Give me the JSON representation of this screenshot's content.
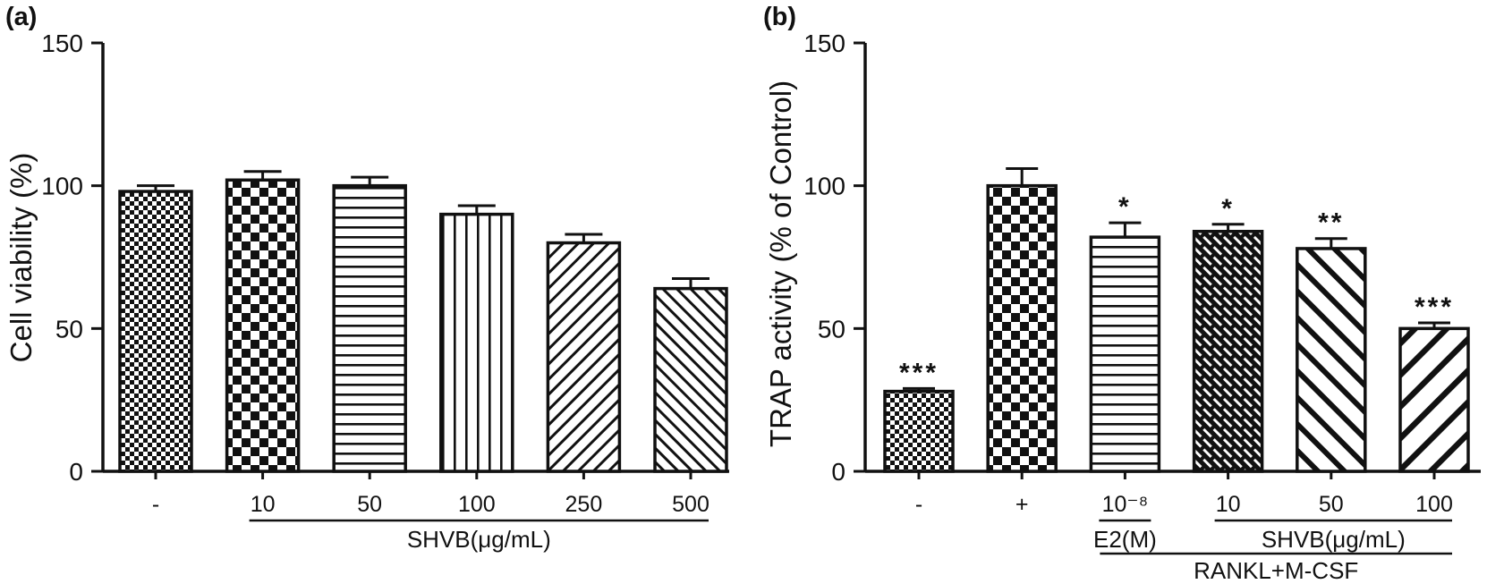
{
  "figure": {
    "background": "#ffffff",
    "ink_color": "#111111"
  },
  "panels": [
    {
      "label": "(a)"
    },
    {
      "label": "(b)"
    }
  ],
  "chart_data": [
    {
      "type": "bar",
      "panel": "a",
      "title": "",
      "xlabel": "",
      "ylabel": "Cell viability (%)",
      "ylim": [
        0,
        150
      ],
      "yticks": [
        0,
        50,
        100,
        150
      ],
      "grid": false,
      "legend": "none",
      "categories": [
        "-",
        "10",
        "50",
        "100",
        "250",
        "500"
      ],
      "values": [
        98,
        102,
        100,
        90,
        80,
        64
      ],
      "errors": [
        2,
        3,
        3,
        3,
        3,
        3.5
      ],
      "significance": [
        "",
        "",
        "",
        "",
        "",
        ""
      ],
      "bar_patterns": [
        "fine-checker",
        "checker",
        "horizontal-lines",
        "vertical-lines",
        "diagonal-forward",
        "diagonal-back"
      ],
      "group_labels": [
        {
          "label": "SHVB(μg/mL)",
          "from_index": 1,
          "to_index": 5,
          "level": 1
        }
      ]
    },
    {
      "type": "bar",
      "panel": "b",
      "title": "",
      "xlabel": "",
      "ylabel": "TRAP activity (% of Control)",
      "ylim": [
        0,
        150
      ],
      "yticks": [
        0,
        50,
        100,
        150
      ],
      "grid": false,
      "legend": "none",
      "categories": [
        "-",
        "+",
        "10⁻⁸",
        "10",
        "50",
        "100"
      ],
      "values": [
        28,
        100,
        82,
        84,
        78,
        50
      ],
      "errors": [
        1,
        6,
        5,
        2.5,
        3.5,
        2
      ],
      "significance": [
        "***",
        "",
        "*",
        "*",
        "**",
        "***"
      ],
      "bar_patterns": [
        "fine-checker",
        "checker",
        "horizontal-lines",
        "diagonal-brick",
        "diagonal-back-bold",
        "diagonal-forward-bold"
      ],
      "group_labels": [
        {
          "label": "E2(M)",
          "from_index": 2,
          "to_index": 2,
          "level": 1
        },
        {
          "label": "SHVB(μg/mL)",
          "from_index": 3,
          "to_index": 5,
          "level": 1
        },
        {
          "label": "RANKL+M-CSF",
          "from_index": 2,
          "to_index": 5,
          "level": 2
        }
      ]
    }
  ]
}
